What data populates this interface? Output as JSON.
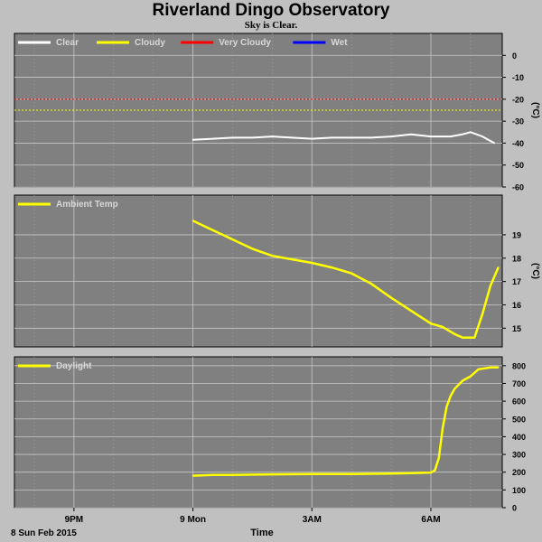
{
  "page": {
    "title": "Riverland Dingo Observatory",
    "subtitle": "Sky is Clear.",
    "date_label": "8 Sun Feb 2015",
    "xlabel": "Time"
  },
  "x_axis": {
    "ticks": [
      {
        "label": "9PM",
        "hour": 21
      },
      {
        "label": "9 Mon",
        "hour": 24
      },
      {
        "label": "3AM",
        "hour": 27
      },
      {
        "label": "6AM",
        "hour": 30
      }
    ],
    "range_hours": [
      19.5,
      31.8
    ]
  },
  "colors": {
    "background": "#c0c0c0",
    "plot_bg": "#808080",
    "grid": "#c8c8c8",
    "clear": "#ffffff",
    "cloudy": "#ffff00",
    "very_cloudy": "#ff0000",
    "wet": "#0000ff",
    "ambient": "#ffff00",
    "daylight": "#ffff00"
  },
  "chart_data": [
    {
      "type": "line",
      "ylabel": "(°C)",
      "ylim": [
        -60,
        10
      ],
      "yticks": [
        0,
        -10,
        -20,
        -30,
        -40,
        -50,
        -60
      ],
      "grid": true,
      "legend": [
        {
          "name": "Clear",
          "color": "#ffffff"
        },
        {
          "name": "Cloudy",
          "color": "#ffff00"
        },
        {
          "name": "Very Cloudy",
          "color": "#ff0000"
        },
        {
          "name": "Wet",
          "color": "#0000ff"
        }
      ],
      "thresholds": [
        {
          "value": -20,
          "color": "#ff0000"
        },
        {
          "value": -25,
          "color": "#ffff00"
        }
      ],
      "series": [
        {
          "name": "Clear",
          "color": "#ffffff",
          "x": [
            24.0,
            24.5,
            25.0,
            25.5,
            26.0,
            26.5,
            27.0,
            27.5,
            28.0,
            28.5,
            29.0,
            29.5,
            30.0,
            30.5,
            30.8,
            31.0,
            31.3,
            31.6
          ],
          "y": [
            -38.5,
            -38,
            -37.5,
            -37.5,
            -37,
            -37.5,
            -38,
            -37.5,
            -37.5,
            -37.5,
            -37,
            -36,
            -37,
            -37,
            -36,
            -35,
            -37,
            -40
          ]
        }
      ]
    },
    {
      "type": "line",
      "ylabel": "(°C)",
      "ylim": [
        14.2,
        20.7
      ],
      "yticks": [
        15,
        16,
        17,
        18,
        19
      ],
      "grid": true,
      "legend": [
        {
          "name": "Ambient Temp",
          "color": "#ffff00"
        }
      ],
      "series": [
        {
          "name": "Ambient Temp",
          "color": "#ffff00",
          "x": [
            24.0,
            24.5,
            25.0,
            25.5,
            26.0,
            26.5,
            27.0,
            27.5,
            28.0,
            28.5,
            29.0,
            29.5,
            30.0,
            30.3,
            30.6,
            30.8,
            30.9,
            31.1,
            31.3,
            31.5,
            31.7
          ],
          "y": [
            19.6,
            19.2,
            18.8,
            18.4,
            18.1,
            17.95,
            17.8,
            17.6,
            17.35,
            16.9,
            16.3,
            15.75,
            15.2,
            15.05,
            14.75,
            14.6,
            14.6,
            14.6,
            15.6,
            16.8,
            17.6
          ]
        }
      ]
    },
    {
      "type": "line",
      "ylabel": "",
      "ylim": [
        0,
        850
      ],
      "yticks": [
        0,
        100,
        200,
        300,
        400,
        500,
        600,
        700,
        800
      ],
      "grid": true,
      "legend": [
        {
          "name": "Daylight",
          "color": "#ffff00"
        }
      ],
      "series": [
        {
          "name": "Daylight",
          "color": "#ffff00",
          "x": [
            24.0,
            24.5,
            25.0,
            26.0,
            27.0,
            28.0,
            29.0,
            29.5,
            30.0,
            30.1,
            30.2,
            30.3,
            30.4,
            30.5,
            30.6,
            30.8,
            31.0,
            31.2,
            31.5,
            31.7
          ],
          "y": [
            180,
            185,
            185,
            188,
            190,
            190,
            192,
            195,
            198,
            210,
            280,
            450,
            570,
            630,
            670,
            715,
            740,
            780,
            790,
            790
          ]
        }
      ]
    }
  ]
}
